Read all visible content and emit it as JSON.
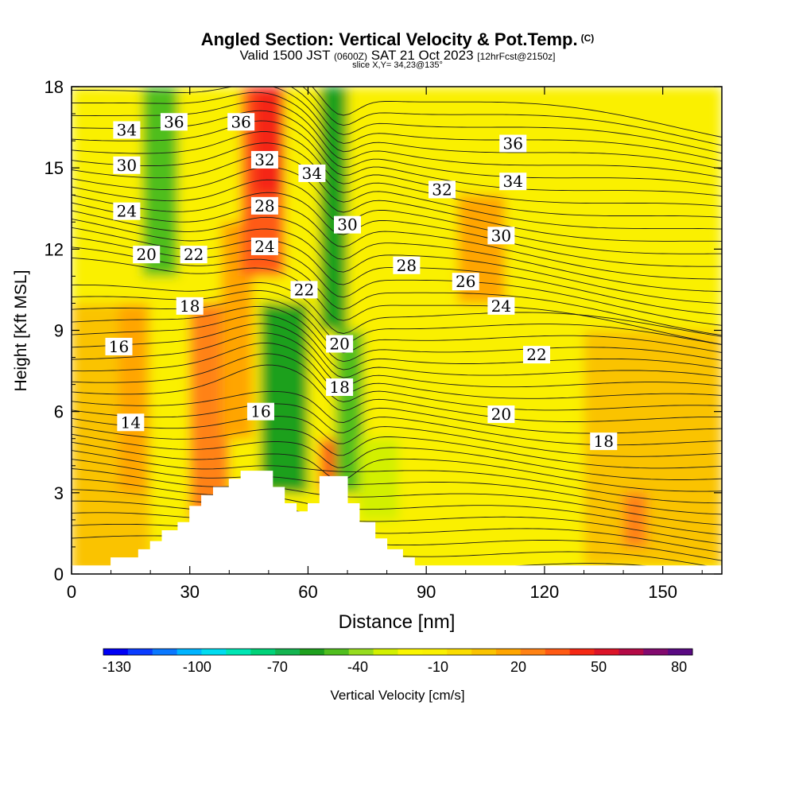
{
  "header": {
    "title": "Angled Section: Vertical Velocity & Pot.Temp.",
    "title_mark": "(C)",
    "valid_prefix": "Valid 1500 JST",
    "valid_zulu": "(0600Z)",
    "valid_date": "SAT 21 Oct 2023",
    "valid_fcst": "[12hrFcst@2150z]",
    "slice": "slice X,Y= 34,23@135°"
  },
  "chart_data": {
    "type": "heatmap",
    "xlabel": "Distance [nm]",
    "ylabel": "Height [Kft MSL]",
    "xlim": [
      0,
      165
    ],
    "ylim": [
      0,
      18
    ],
    "xticks": [
      0,
      30,
      60,
      90,
      120,
      150
    ],
    "yticks": [
      0,
      3,
      6,
      9,
      12,
      15,
      18
    ],
    "colorbar": {
      "label": "Vertical Velocity [cm/s]",
      "tick_labels": [
        "-130",
        "-100",
        "-70",
        "-40",
        "-10",
        "20",
        "50",
        "80"
      ],
      "bin_edges": [
        -135,
        -125,
        -115,
        -105,
        -95,
        -85,
        -75,
        -65,
        -55,
        -45,
        -35,
        -25,
        -15,
        -5,
        5,
        15,
        25,
        35,
        45,
        55,
        65,
        75,
        85
      ],
      "colors": [
        "#0000f5",
        "#0a3cff",
        "#0a78ff",
        "#00b4ff",
        "#00dcf0",
        "#00e6b4",
        "#00d278",
        "#14b450",
        "#1ea01e",
        "#50be1e",
        "#96dc1e",
        "#d2f000",
        "#faf500",
        "#faf000",
        "#fadc00",
        "#fac300",
        "#ffa500",
        "#ff8214",
        "#ff5a14",
        "#f52814",
        "#dc1428",
        "#b40a46",
        "#820a6e",
        "#5a0a82"
      ]
    },
    "velocity_bands": [
      {
        "x": 0,
        "w": 165,
        "ybot": 0,
        "ytop": 18,
        "value": 0
      },
      {
        "x": 0,
        "w": 20,
        "ybot": 0,
        "ytop": 10,
        "value": 20
      },
      {
        "x": 95,
        "w": 40,
        "ybot": 0.3,
        "ytop": 6,
        "value": 0
      },
      {
        "x": 130,
        "w": 35,
        "ybot": 0.3,
        "ytop": 9,
        "value": 20
      },
      {
        "x": 12,
        "w": 7,
        "ybot": 3,
        "ytop": 10,
        "value": 30
      },
      {
        "x": 30,
        "w": 10,
        "ybot": 2,
        "ytop": 10,
        "value": 40
      },
      {
        "x": 38,
        "w": 8,
        "ybot": 5,
        "ytop": 13,
        "value": 30
      },
      {
        "x": 43,
        "w": 11,
        "ybot": 11,
        "ytop": 18,
        "value": 50
      },
      {
        "x": 46,
        "w": 8,
        "ybot": 14,
        "ytop": 18,
        "value": 60
      },
      {
        "x": 18,
        "w": 9,
        "ybot": 11,
        "ytop": 18,
        "value": -40
      },
      {
        "x": 48,
        "w": 12,
        "ybot": 3,
        "ytop": 10,
        "value": -50
      },
      {
        "x": 63,
        "w": 7,
        "ybot": 9,
        "ytop": 18,
        "value": -50
      },
      {
        "x": 67,
        "w": 7,
        "ybot": 3,
        "ytop": 9,
        "value": -40
      },
      {
        "x": 63,
        "w": 4,
        "ybot": 3,
        "ytop": 5,
        "value": 50
      },
      {
        "x": 73,
        "w": 10,
        "ybot": 2,
        "ytop": 5,
        "value": -20
      },
      {
        "x": 98,
        "w": 12,
        "ybot": 10,
        "ytop": 14,
        "value": 30
      },
      {
        "x": 140,
        "w": 6,
        "ybot": 1,
        "ytop": 3,
        "value": 40
      }
    ],
    "theta_contour_labels": [
      {
        "text": "34",
        "x": 14,
        "y": 16.4
      },
      {
        "text": "36",
        "x": 26,
        "y": 16.7
      },
      {
        "text": "36",
        "x": 43,
        "y": 16.7
      },
      {
        "text": "36",
        "x": 112,
        "y": 15.9
      },
      {
        "text": "30",
        "x": 14,
        "y": 15.1
      },
      {
        "text": "32",
        "x": 49,
        "y": 15.3
      },
      {
        "text": "34",
        "x": 61,
        "y": 14.8
      },
      {
        "text": "34",
        "x": 112,
        "y": 14.5
      },
      {
        "text": "32",
        "x": 94,
        "y": 14.2
      },
      {
        "text": "24",
        "x": 14,
        "y": 13.4
      },
      {
        "text": "28",
        "x": 49,
        "y": 13.6
      },
      {
        "text": "30",
        "x": 70,
        "y": 12.9
      },
      {
        "text": "30",
        "x": 109,
        "y": 12.5
      },
      {
        "text": "20",
        "x": 19,
        "y": 11.8
      },
      {
        "text": "22",
        "x": 31,
        "y": 11.8
      },
      {
        "text": "24",
        "x": 49,
        "y": 12.1
      },
      {
        "text": "28",
        "x": 85,
        "y": 11.4
      },
      {
        "text": "26",
        "x": 100,
        "y": 10.8
      },
      {
        "text": "22",
        "x": 59,
        "y": 10.5
      },
      {
        "text": "24",
        "x": 109,
        "y": 9.9
      },
      {
        "text": "18",
        "x": 30,
        "y": 9.9
      },
      {
        "text": "20",
        "x": 68,
        "y": 8.5
      },
      {
        "text": "22",
        "x": 118,
        "y": 8.1
      },
      {
        "text": "16",
        "x": 12,
        "y": 8.4
      },
      {
        "text": "18",
        "x": 68,
        "y": 6.9
      },
      {
        "text": "16",
        "x": 48,
        "y": 6.0
      },
      {
        "text": "20",
        "x": 109,
        "y": 5.9
      },
      {
        "text": "14",
        "x": 15,
        "y": 5.6
      },
      {
        "text": "18",
        "x": 135,
        "y": 4.9
      }
    ],
    "terrain": [
      [
        0,
        0.3
      ],
      [
        10,
        0.3
      ],
      [
        10,
        0.6
      ],
      [
        17,
        0.6
      ],
      [
        17,
        0.9
      ],
      [
        20,
        0.9
      ],
      [
        20,
        1.2
      ],
      [
        23,
        1.2
      ],
      [
        23,
        1.6
      ],
      [
        27,
        1.6
      ],
      [
        27,
        1.9
      ],
      [
        30,
        1.9
      ],
      [
        30,
        2.5
      ],
      [
        33,
        2.5
      ],
      [
        33,
        2.9
      ],
      [
        36,
        2.9
      ],
      [
        36,
        3.2
      ],
      [
        40,
        3.2
      ],
      [
        40,
        3.5
      ],
      [
        43,
        3.5
      ],
      [
        43,
        3.8
      ],
      [
        51,
        3.8
      ],
      [
        51,
        3.2
      ],
      [
        54,
        3.2
      ],
      [
        54,
        2.6
      ],
      [
        57,
        2.6
      ],
      [
        57,
        2.3
      ],
      [
        60,
        2.3
      ],
      [
        60,
        2.6
      ],
      [
        63,
        2.6
      ],
      [
        63,
        3.6
      ],
      [
        70,
        3.6
      ],
      [
        70,
        2.6
      ],
      [
        73,
        2.6
      ],
      [
        73,
        1.9
      ],
      [
        77,
        1.9
      ],
      [
        77,
        1.3
      ],
      [
        80,
        1.3
      ],
      [
        80,
        0.9
      ],
      [
        84,
        0.9
      ],
      [
        84,
        0.6
      ],
      [
        87,
        0.6
      ],
      [
        87,
        0.3
      ],
      [
        165,
        0.3
      ]
    ]
  }
}
